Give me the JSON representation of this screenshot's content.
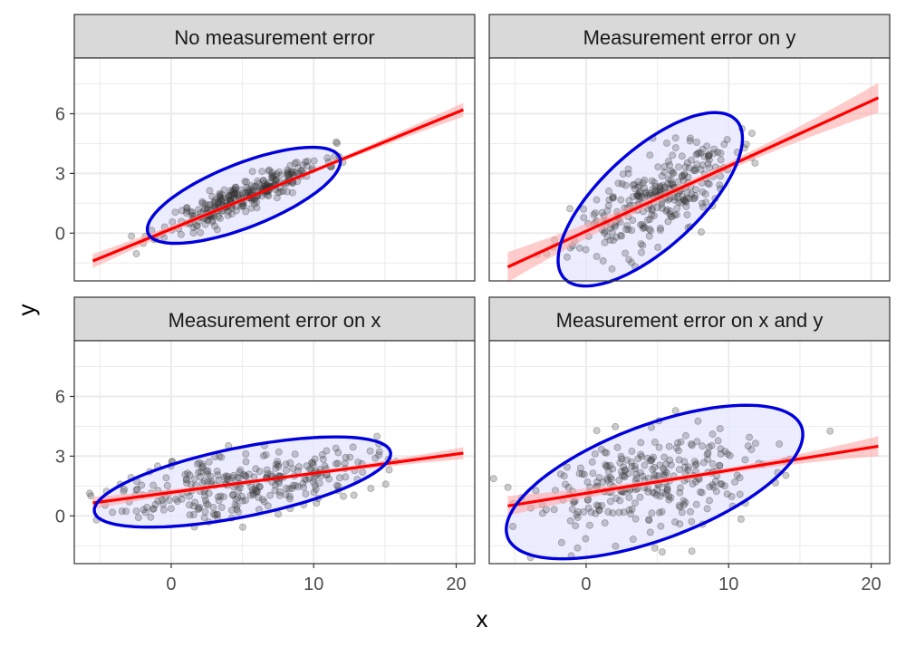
{
  "chart_data": {
    "type": "scatter",
    "layout": "facet-grid-2x2",
    "xlabel": "x",
    "ylabel": "y",
    "xlim": [
      -6.8,
      21.3
    ],
    "ylim": [
      -2.4,
      8.8
    ],
    "x_ticks": [
      0,
      10,
      20
    ],
    "y_ticks": [
      0,
      3,
      6
    ],
    "x_minor_ticks": [
      -5,
      5,
      15
    ],
    "y_minor_ticks": [
      -1.5,
      1.5,
      4.5,
      7.5
    ],
    "grid": true,
    "colors": {
      "points": "#333333",
      "fit_line": "#ff0000",
      "fit_band": "#ffaaaa",
      "ellipse_stroke": "#0000dd",
      "ellipse_fill": "#e6e6ff",
      "strip_fill": "#d9d9d9",
      "grid": "#ebebeb"
    },
    "panels": [
      {
        "title": "No measurement error",
        "fit": {
          "x": [
            -5.5,
            20.5
          ],
          "y": [
            -1.4,
            6.2
          ],
          "band_halfwidth_end": 0.35,
          "band_halfwidth_mid": 0.08
        },
        "ellipse": {
          "cx": 5.1,
          "cy": 1.9,
          "rx": 7.0,
          "ry": 1.65,
          "angle_deg": 15
        },
        "cloud": {
          "n": 300,
          "x_mean": 5.1,
          "x_sd": 2.8,
          "slope": 0.3,
          "intercept": 0.35,
          "resid_sd": 0.38,
          "seed": 11
        }
      },
      {
        "title": "Measurement error on y",
        "fit": {
          "x": [
            -5.5,
            20.5
          ],
          "y": [
            -1.7,
            6.8
          ],
          "band_halfwidth_end": 0.75,
          "band_halfwidth_mid": 0.18
        },
        "ellipse": {
          "cx": 4.5,
          "cy": 1.7,
          "rx": 7.3,
          "ry": 2.75,
          "angle_deg": 30
        },
        "cloud": {
          "n": 300,
          "x_mean": 4.8,
          "x_sd": 2.8,
          "slope": 0.33,
          "intercept": 0.15,
          "resid_sd": 1.0,
          "seed": 23
        }
      },
      {
        "title": "Measurement error on x",
        "fit": {
          "x": [
            -5.5,
            20.5
          ],
          "y": [
            0.65,
            3.15
          ],
          "band_halfwidth_end": 0.3,
          "band_halfwidth_mid": 0.08
        },
        "ellipse": {
          "cx": 5.0,
          "cy": 1.7,
          "rx": 10.5,
          "ry": 1.75,
          "angle_deg": 8
        },
        "cloud": {
          "n": 300,
          "x_mean": 5.0,
          "x_sd": 4.5,
          "slope": 0.095,
          "intercept": 1.2,
          "resid_sd": 0.8,
          "seed": 37
        }
      },
      {
        "title": "Measurement error on x and y",
        "fit": {
          "x": [
            -5.5,
            20.5
          ],
          "y": [
            0.5,
            3.5
          ],
          "band_halfwidth_end": 0.5,
          "band_halfwidth_mid": 0.12
        },
        "ellipse": {
          "cx": 4.8,
          "cy": 1.7,
          "rx": 10.7,
          "ry": 2.95,
          "angle_deg": 14
        },
        "cloud": {
          "n": 300,
          "x_mean": 4.8,
          "x_sd": 4.5,
          "slope": 0.12,
          "intercept": 1.1,
          "resid_sd": 1.25,
          "seed": 53
        }
      }
    ]
  }
}
